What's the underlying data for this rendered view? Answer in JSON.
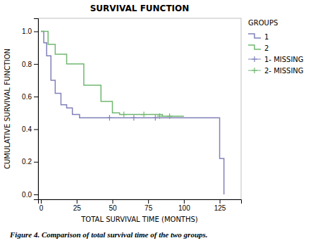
{
  "chart_data": {
    "type": "line",
    "title": "SURVIVAL FUNCTION",
    "x_label": "TOTAL SURVIVAL TIME (MONTHS)",
    "y_label": "CUMULATIVE SURVIVAL FUNCTION",
    "caption": "Figure 4. Comparison of total survival time of the two groups.",
    "xlim": [
      -2,
      140
    ],
    "ylim": [
      -0.03,
      1.08
    ],
    "xticks": [
      0,
      25,
      50,
      75,
      100,
      125
    ],
    "yticks": [
      {
        "value": 0,
        "label": "0.0"
      },
      0.2,
      0.4,
      0.6,
      0.8,
      {
        "value": 1,
        "label": "1.0"
      }
    ],
    "grid": false,
    "legend": "right",
    "legend_title": "GROUPS",
    "series": [
      {
        "name": "1",
        "type": "step",
        "color": "#8080bb",
        "x": [
          0,
          2,
          4,
          7,
          10,
          14,
          18,
          22,
          27,
          33,
          40,
          48,
          120,
          125,
          128
        ],
        "values": [
          1.0,
          0.93,
          0.85,
          0.7,
          0.62,
          0.55,
          0.53,
          0.49,
          0.47,
          0.47,
          0.47,
          0.47,
          0.47,
          0.22,
          0.0
        ]
      },
      {
        "name": "2",
        "type": "step",
        "color": "#70b870",
        "x": [
          0,
          1,
          5,
          10,
          18,
          30,
          42,
          50,
          55,
          62,
          70,
          77,
          85,
          95,
          100
        ],
        "values": [
          1.0,
          1.0,
          0.92,
          0.86,
          0.8,
          0.67,
          0.57,
          0.5,
          0.49,
          0.49,
          0.49,
          0.49,
          0.48,
          0.48,
          0.48
        ]
      },
      {
        "name": "1- MISSING",
        "type": "scatter",
        "marker": "plus",
        "color": "#8080bb",
        "x": [
          48,
          65,
          80
        ],
        "values": [
          0.47,
          0.47,
          0.47
        ]
      },
      {
        "name": "2- MISSING",
        "type": "scatter",
        "marker": "plus",
        "color": "#70b870",
        "x": [
          58,
          72,
          83,
          90
        ],
        "values": [
          0.49,
          0.49,
          0.48,
          0.48
        ]
      }
    ]
  }
}
